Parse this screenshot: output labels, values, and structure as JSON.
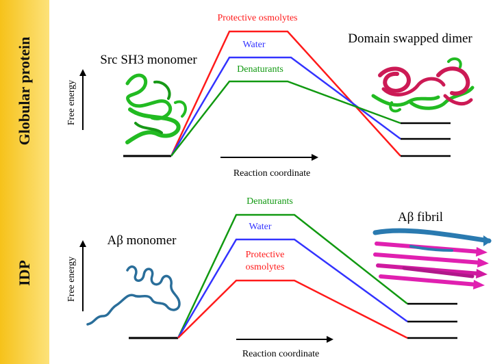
{
  "sections": {
    "globular": {
      "side_label": "Globular protein",
      "y_axis_label": "Free energy",
      "x_axis_label": "Reaction coordinate",
      "left_state": "Src SH3 monomer",
      "right_state": "Domain swapped dimer",
      "curves": [
        {
          "label": "Protective osmolytes",
          "color": "#ff1a1a"
        },
        {
          "label": "Water",
          "color": "#3333ff"
        },
        {
          "label": "Denaturants",
          "color": "#119911"
        }
      ]
    },
    "idp": {
      "side_label": "IDP",
      "y_axis_label": "Free energy",
      "x_axis_label": "Reaction coordinate",
      "left_state": "Aβ monomer",
      "right_state": "Aβ fibril",
      "curves": [
        {
          "label": "Denaturants",
          "color": "#119911"
        },
        {
          "label": "Water",
          "color": "#3333ff"
        },
        {
          "label": "Protective\nosmolytes",
          "label_lines": [
            "Protective",
            "osmolytes"
          ],
          "color": "#ff1a1a"
        }
      ]
    }
  },
  "colors": {
    "panel": "#f6c21a",
    "protein_green": "#22bb22",
    "dimer_magenta": "#cc1a55",
    "fibril_magenta": "#e020b0",
    "fibril_blue": "#2a7ab0"
  }
}
